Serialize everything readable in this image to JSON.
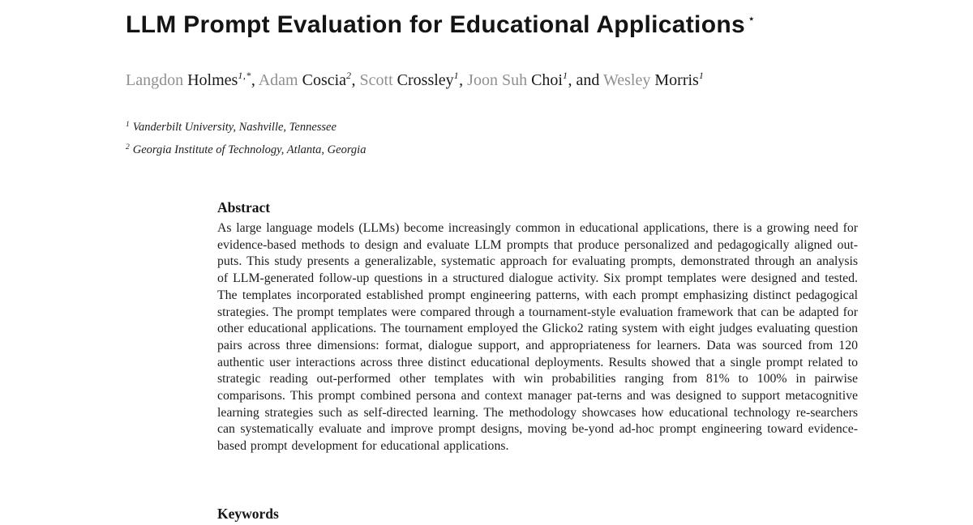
{
  "paper": {
    "title": "LLM Prompt Evaluation for Educational Applications",
    "title_star": "⋆",
    "authors": [
      {
        "prefix": "",
        "first": "Langdon",
        "last": "Holmes",
        "sup": "1,*",
        "sep": ", "
      },
      {
        "prefix": "",
        "first": "Adam",
        "last": "Coscia",
        "sup": "2",
        "sep": ", "
      },
      {
        "prefix": "",
        "first": "Scott",
        "last": "Crossley",
        "sup": "1",
        "sep": ", "
      },
      {
        "prefix": "",
        "first": "Joon Suh",
        "last": "Choi",
        "sup": "1",
        "sep": ", "
      },
      {
        "prefix": "and ",
        "first": "Wesley",
        "last": "Morris",
        "sup": "1",
        "sep": ""
      }
    ],
    "affiliations": [
      {
        "sup": "1",
        "text": "Vanderbilt University, Nashville, Tennessee"
      },
      {
        "sup": "2",
        "text": "Georgia Institute of Technology, Atlanta, Georgia"
      }
    ],
    "abstract_heading": "Abstract",
    "abstract_text": "As large language models (LLMs) become increasingly common in educational applications, there is a growing need for evidence-based methods to design and evaluate LLM prompts that produce personalized and pedagogically aligned out-puts. This study presents a generalizable, systematic approach for evaluating prompts, demonstrated through an analysis of LLM-generated follow-up questions in a structured dialogue activity. Six prompt templates were designed and tested. The templates incorporated established prompt engineering patterns, with each prompt emphasizing distinct pedagogical strategies. The prompt templates were compared through a tournament-style evaluation framework that can be adapted for other educational applications. The tournament employed the Glicko2 rating system with eight judges evaluating question pairs across three dimensions: format, dialogue support, and appropriateness for learners. Data was sourced from 120 authentic user interactions across three distinct educational deployments. Results showed that a single prompt related to strategic reading out-performed other templates with win probabilities ranging from 81% to 100% in pairwise comparisons. This prompt combined persona and context manager pat-terns and was designed to support metacognitive learning strategies such as self-directed learning. The methodology showcases how educational technology re-searchers can systematically evaluate and improve prompt designs, moving be-yond ad-hoc prompt engineering toward evidence-based prompt development for educational applications.",
    "keywords_heading": "Keywords"
  },
  "colors": {
    "text": "#1b1b1b",
    "muted_author_first_name": "#8f8f8f",
    "background": "#ffffff"
  }
}
